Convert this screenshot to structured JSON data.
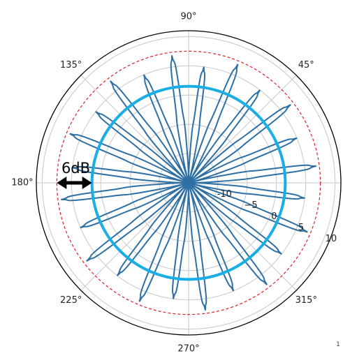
{
  "chart_data": {
    "type": "line",
    "projection": "polar",
    "angle_ticks": [
      {
        "deg": 0,
        "label": ""
      },
      {
        "deg": 45,
        "label": "45°"
      },
      {
        "deg": 90,
        "label": "90°"
      },
      {
        "deg": 135,
        "label": "135°"
      },
      {
        "deg": 180,
        "label": "180°"
      },
      {
        "deg": 225,
        "label": "225°"
      },
      {
        "deg": 270,
        "label": "270°"
      },
      {
        "deg": 315,
        "label": "315°"
      }
    ],
    "radial_ticks": [
      {
        "value": -10,
        "label": "-10"
      },
      {
        "value": -5,
        "label": "−5"
      },
      {
        "value": 0,
        "label": "0"
      },
      {
        "value": 5,
        "label": "5"
      },
      {
        "value": 10,
        "label": "10"
      }
    ],
    "rlim": [
      -15,
      11
    ],
    "grid": true,
    "pattern": {
      "lobes": 24,
      "peak_db": 7.5,
      "peak_db_alt": 5.5,
      "null_db": -15,
      "color": "#2e6fa4"
    },
    "reference_circles": [
      {
        "name": "",
        "value_db": 1.5,
        "style": "solid",
        "color": "#1aaee6"
      },
      {
        "name": "",
        "value_db": 7.5,
        "style": "dashed",
        "color": "#e0202a"
      }
    ],
    "annotations": [
      {
        "text": "6dB",
        "from_db": 1.5,
        "to_db": 7.5,
        "angle_deg": 180,
        "color": "#000000"
      }
    ],
    "corner_mark": "1"
  }
}
